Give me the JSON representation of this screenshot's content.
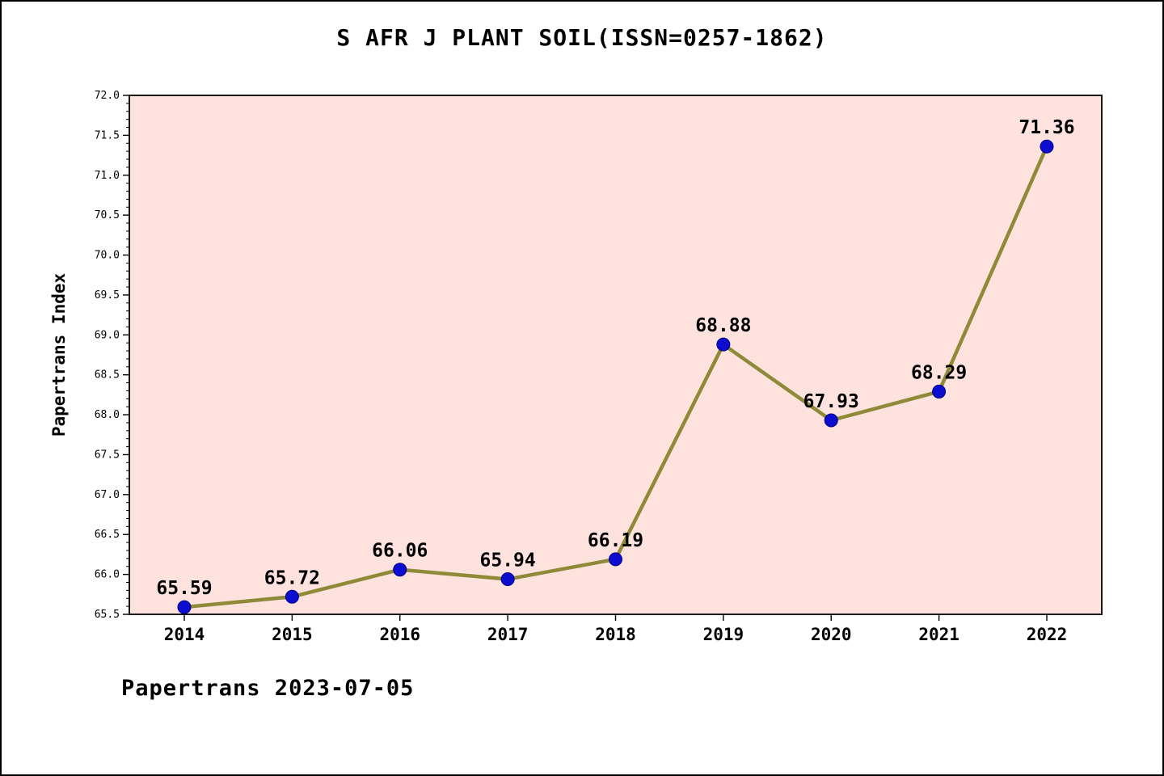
{
  "chart_data": {
    "type": "line",
    "title": "S AFR J PLANT SOIL(ISSN=0257-1862)",
    "ylabel": "Papertrans Index",
    "xlabel": "",
    "categories": [
      "2014",
      "2015",
      "2016",
      "2017",
      "2018",
      "2019",
      "2020",
      "2021",
      "2022"
    ],
    "values": [
      65.59,
      65.72,
      66.06,
      65.94,
      66.19,
      68.88,
      67.93,
      68.29,
      71.36
    ],
    "point_labels": [
      "65.59",
      "65.72",
      "66.06",
      "65.94",
      "66.19",
      "68.88",
      "67.93",
      "68.29",
      "71.36"
    ],
    "ylim": [
      65.5,
      72.0
    ],
    "ytick_step": 0.5,
    "ytick_minor_step": 0.1,
    "grid": false,
    "legend": false,
    "footer": "Papertrans 2023-07-05",
    "colors": {
      "plot_bg": "#fde2de",
      "line": "#8f8a38",
      "marker_fill": "#0d0dcf",
      "marker_edge": "#000080",
      "axis": "#000000",
      "text": "#000000"
    }
  }
}
